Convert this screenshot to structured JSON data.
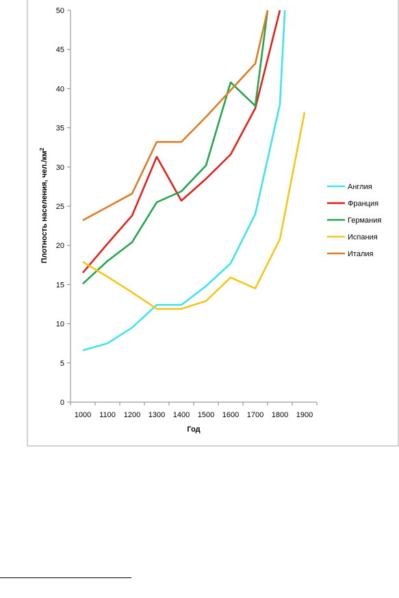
{
  "chart_data": {
    "type": "line",
    "xlabel": "Год",
    "ylabel": "Плотность населения, чел./км²",
    "ylim": [
      0,
      50
    ],
    "y_ticks": [
      0,
      5,
      10,
      15,
      20,
      25,
      30,
      35,
      40,
      45,
      50
    ],
    "x_tick_labels": [
      "1000",
      "1100",
      "1200",
      "1300",
      "1400",
      "1500",
      "1600",
      "1700",
      "1800",
      "1900"
    ],
    "grid": false,
    "legend_position": "right",
    "series": [
      {
        "name": "Англия",
        "color": "#3EE3F0",
        "points": [
          [
            1000,
            6.6
          ],
          [
            1100,
            7.5
          ],
          [
            1200,
            9.5
          ],
          [
            1300,
            12.4
          ],
          [
            1400,
            12.4
          ],
          [
            1500,
            14.8
          ],
          [
            1600,
            17.7
          ],
          [
            1700,
            24
          ],
          [
            1800,
            38
          ],
          [
            1820,
            50
          ]
        ]
      },
      {
        "name": "Франция",
        "color": "#E1211A",
        "points": [
          [
            1000,
            16.5
          ],
          [
            1100,
            20.2
          ],
          [
            1200,
            23.8
          ],
          [
            1300,
            31.3
          ],
          [
            1400,
            25.7
          ],
          [
            1500,
            28.5
          ],
          [
            1600,
            31.6
          ],
          [
            1700,
            37.5
          ],
          [
            1800,
            50
          ]
        ]
      },
      {
        "name": "Германия",
        "color": "#22A64A",
        "points": [
          [
            1000,
            15.1
          ],
          [
            1100,
            18
          ],
          [
            1200,
            20.4
          ],
          [
            1300,
            25.5
          ],
          [
            1400,
            26.9
          ],
          [
            1500,
            30.2
          ],
          [
            1600,
            40.8
          ],
          [
            1700,
            37.8
          ],
          [
            1750,
            50
          ]
        ]
      },
      {
        "name": "Испания",
        "color": "#F5C518",
        "points": [
          [
            1000,
            17.9
          ],
          [
            1100,
            16
          ],
          [
            1200,
            14
          ],
          [
            1300,
            11.9
          ],
          [
            1400,
            11.9
          ],
          [
            1500,
            12.9
          ],
          [
            1600,
            15.9
          ],
          [
            1700,
            14.5
          ],
          [
            1800,
            20.8
          ],
          [
            1900,
            37
          ]
        ]
      },
      {
        "name": "Италия",
        "color": "#E07B24",
        "points": [
          [
            1000,
            23.2
          ],
          [
            1100,
            24.9
          ],
          [
            1200,
            26.6
          ],
          [
            1300,
            33.2
          ],
          [
            1400,
            33.2
          ],
          [
            1500,
            36.4
          ],
          [
            1600,
            39.8
          ],
          [
            1700,
            43.2
          ],
          [
            1750,
            50
          ]
        ]
      }
    ]
  }
}
